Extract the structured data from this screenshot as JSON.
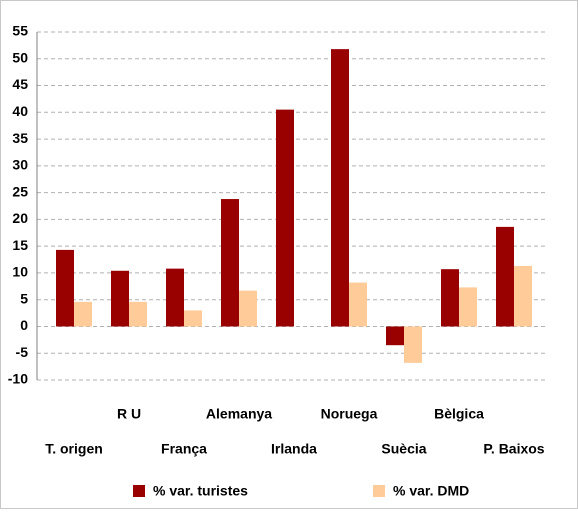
{
  "chart_data": {
    "type": "bar",
    "categories": [
      "T. origen",
      "R U",
      "França",
      "Alemanya",
      "Irlanda",
      "Noruega",
      "Suècia",
      "Bèlgica",
      "P. Baixos"
    ],
    "series": [
      {
        "name": "% var. turistes",
        "color": "#990000",
        "values": [
          14.3,
          10.4,
          10.8,
          23.8,
          40.5,
          51.8,
          -3.5,
          10.7,
          18.6
        ]
      },
      {
        "name": "% var. DMD",
        "color": "#ffcc99",
        "values": [
          4.6,
          4.6,
          3.0,
          6.7,
          null,
          8.2,
          -6.8,
          7.3,
          11.3
        ]
      }
    ],
    "ylim": [
      -10,
      55
    ],
    "yticks": [
      -10,
      -5,
      0,
      5,
      10,
      15,
      20,
      25,
      30,
      35,
      40,
      45,
      50,
      55
    ],
    "grid": true
  }
}
